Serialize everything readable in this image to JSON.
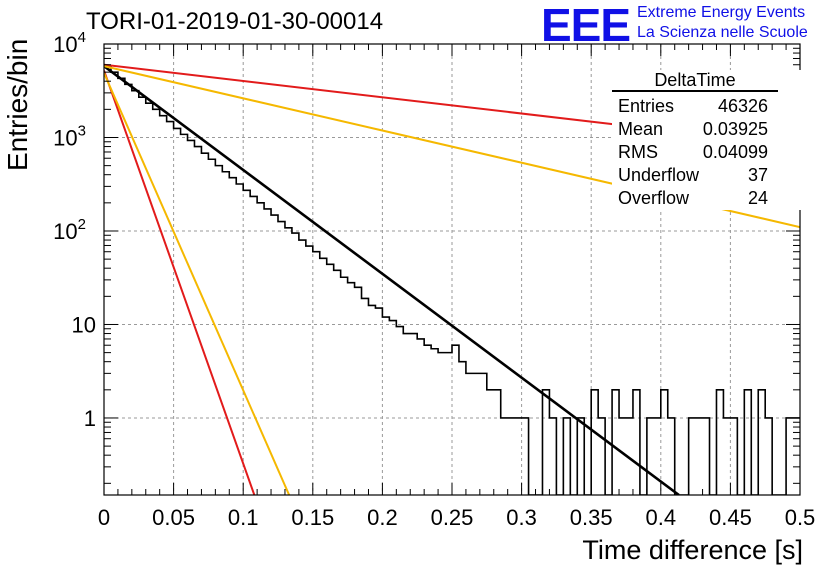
{
  "title": "TORI-01-2019-01-30-00014",
  "logo": {
    "text": "EEE",
    "line1": "Extreme Energy Events",
    "line2": "La Scienza nelle Scuole",
    "color": "#1010e6"
  },
  "stats_box": {
    "title": "DeltaTime",
    "rows": [
      {
        "label": "Entries",
        "value": "46326"
      },
      {
        "label": "Mean",
        "value": "0.03925"
      },
      {
        "label": "RMS",
        "value": "0.04099"
      },
      {
        "label": "Underflow",
        "value": "37"
      },
      {
        "label": "Overflow",
        "value": "24"
      }
    ]
  },
  "chart_data": {
    "type": "line",
    "xlabel": "Time difference [s]",
    "ylabel": "Entries/bin",
    "xlim": [
      0,
      0.5
    ],
    "ylim": [
      0.15,
      10000
    ],
    "log_y": true,
    "grid": true,
    "x_ticks": [
      {
        "value": 0,
        "label": "0"
      },
      {
        "value": 0.05,
        "label": "0.05"
      },
      {
        "value": 0.1,
        "label": "0.1"
      },
      {
        "value": 0.15,
        "label": "0.15"
      },
      {
        "value": 0.2,
        "label": "0.2"
      },
      {
        "value": 0.25,
        "label": "0.25"
      },
      {
        "value": 0.3,
        "label": "0.3"
      },
      {
        "value": 0.35,
        "label": "0.35"
      },
      {
        "value": 0.4,
        "label": "0.4"
      },
      {
        "value": 0.45,
        "label": "0.45"
      },
      {
        "value": 0.5,
        "label": "0.5"
      }
    ],
    "y_ticks": [
      {
        "value": 1,
        "base": "1",
        "exp": ""
      },
      {
        "value": 10,
        "base": "10",
        "exp": ""
      },
      {
        "value": 100,
        "base": "10",
        "exp": "2"
      },
      {
        "value": 1000,
        "base": "10",
        "exp": "3"
      },
      {
        "value": 10000,
        "base": "10",
        "exp": "4"
      }
    ],
    "histogram": {
      "bin_width": 0.005,
      "color": "#000000",
      "counts": [
        5790,
        5000,
        4300,
        3700,
        3170,
        2700,
        2330,
        2000,
        1710,
        1480,
        1250,
        1080,
        930,
        800,
        680,
        585,
        500,
        430,
        372,
        318,
        272,
        234,
        200,
        172,
        148,
        126,
        108,
        95,
        80,
        69,
        60,
        51,
        44,
        38,
        32,
        28,
        25,
        19,
        16,
        15,
        12,
        11,
        9.5,
        8,
        8,
        7,
        6,
        5.5,
        5,
        5,
        6,
        4,
        3,
        3,
        3,
        2,
        2,
        1,
        1,
        1,
        1,
        0,
        0.1,
        2,
        1,
        0.1,
        1,
        0.1,
        1,
        0.1,
        2,
        1,
        0.1,
        2,
        1,
        1,
        2,
        0.1,
        1,
        1,
        2,
        1,
        0.1,
        0.1,
        1,
        1,
        1,
        0.1,
        2,
        1,
        1,
        0.1,
        2,
        0.1,
        2,
        1,
        0.1,
        0.1,
        1,
        1
      ]
    },
    "series": [
      {
        "kind": "fit",
        "color": "#000000",
        "points": [
          [
            0,
            5800
          ],
          [
            0.413,
            0.15
          ]
        ]
      },
      {
        "kind": "slow-red",
        "color": "#e21b1b",
        "points": [
          [
            0,
            6000
          ],
          [
            0.5,
            810
          ]
        ]
      },
      {
        "kind": "slow-yellow",
        "color": "#f5b800",
        "points": [
          [
            0,
            5800
          ],
          [
            0.5,
            110
          ]
        ]
      },
      {
        "kind": "fast-red",
        "color": "#e21b1b",
        "points": [
          [
            0,
            5200
          ],
          [
            0.108,
            0.15
          ]
        ]
      },
      {
        "kind": "fast-yellow",
        "color": "#f5b800",
        "points": [
          [
            0,
            4900
          ],
          [
            0.133,
            0.15
          ]
        ]
      }
    ]
  }
}
